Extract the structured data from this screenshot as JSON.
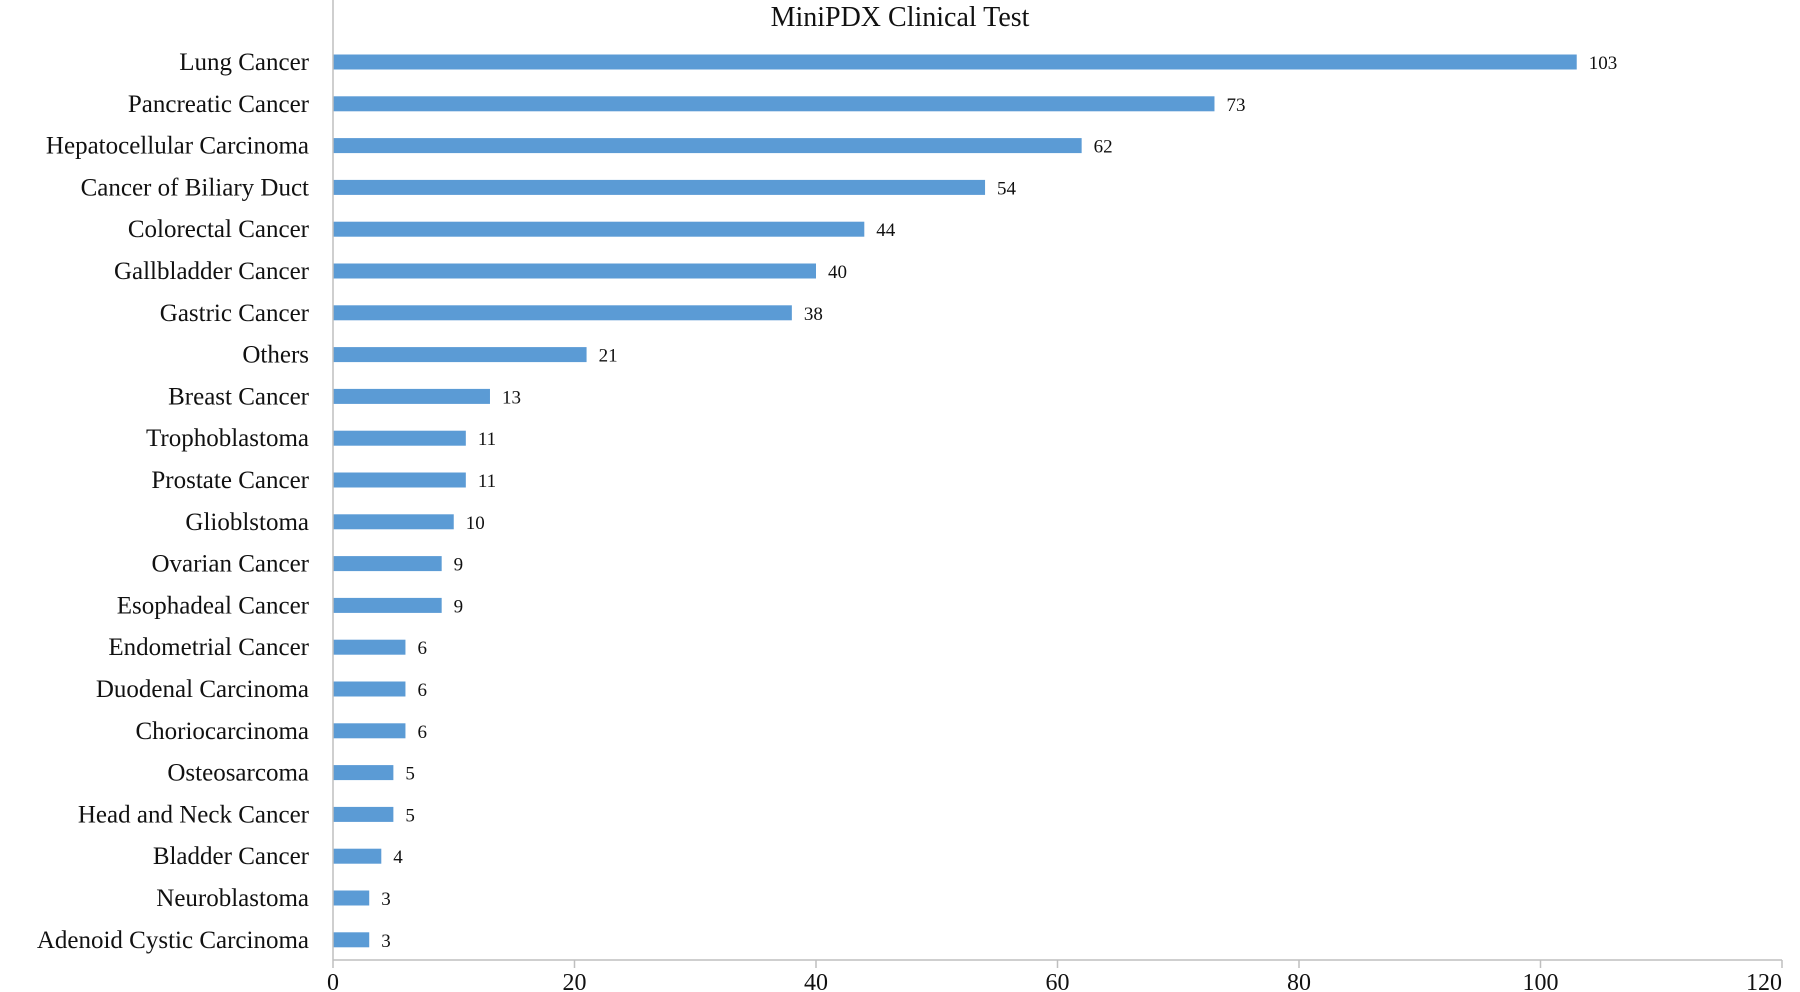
{
  "chart_data": {
    "type": "bar",
    "orientation": "horizontal",
    "title": "MiniPDX Clinical Test",
    "xlabel": "",
    "ylabel": "",
    "categories": [
      "Lung Cancer",
      "Pancreatic Cancer",
      "Hepatocellular Carcinoma",
      "Cancer of Biliary Duct",
      "Colorectal Cancer",
      "Gallbladder Cancer",
      "Gastric Cancer",
      "Others",
      "Breast Cancer",
      "Trophoblastoma",
      "Prostate Cancer",
      "Glioblstoma",
      "Ovarian Cancer",
      "Esophadeal Cancer",
      "Endometrial Cancer",
      "Duodenal Carcinoma",
      "Choriocarcinoma",
      "Osteosarcoma",
      "Head and Neck Cancer",
      "Bladder Cancer",
      "Neuroblastoma",
      "Adenoid Cystic Carcinoma"
    ],
    "values": [
      103,
      73,
      62,
      54,
      44,
      40,
      38,
      21,
      13,
      11,
      11,
      10,
      9,
      9,
      6,
      6,
      6,
      5,
      5,
      4,
      3,
      3
    ],
    "xlim": [
      0,
      120
    ],
    "xticks": [
      "0",
      "20",
      "40",
      "60",
      "80",
      "100",
      "120"
    ],
    "data_labels": true,
    "grid": false,
    "legend": "none",
    "colors": {
      "bar": "#5b9bd5",
      "axis": "#bfbfbf",
      "text": "#111111"
    }
  }
}
